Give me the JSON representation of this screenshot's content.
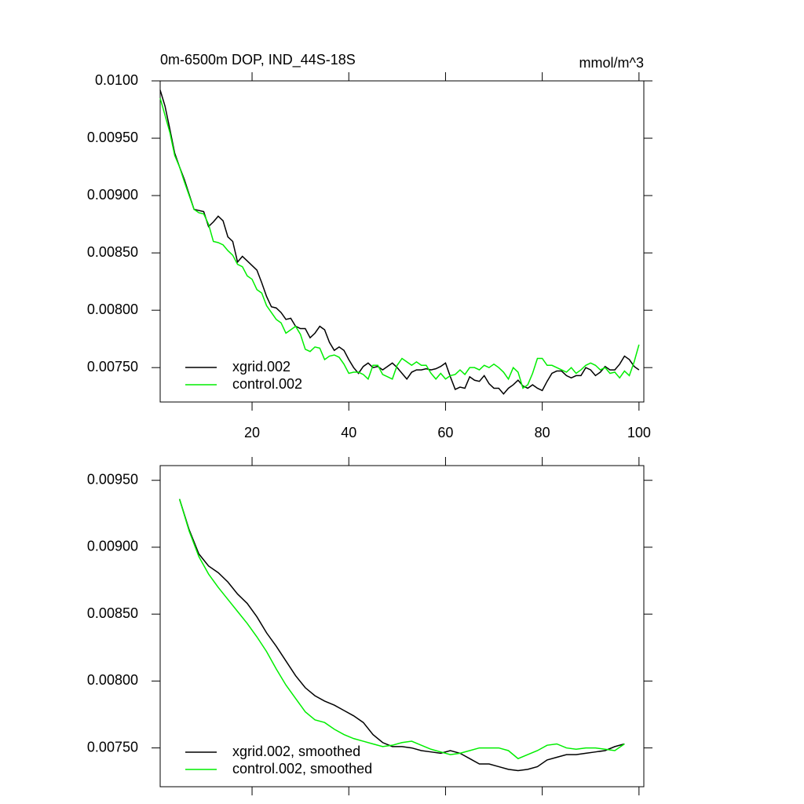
{
  "chart_data": [
    {
      "type": "line",
      "title": "0m-6500m DOP, IND_44S-18S",
      "subtitle": "mmol/m^3",
      "x": [
        1,
        2,
        3,
        4,
        5,
        6,
        7,
        8,
        9,
        10,
        11,
        12,
        13,
        14,
        15,
        16,
        17,
        18,
        19,
        20,
        21,
        22,
        23,
        24,
        25,
        26,
        27,
        28,
        29,
        30,
        31,
        32,
        33,
        34,
        35,
        36,
        37,
        38,
        39,
        40,
        41,
        42,
        43,
        44,
        45,
        46,
        47,
        48,
        49,
        50,
        51,
        52,
        53,
        54,
        55,
        56,
        57,
        58,
        59,
        60,
        61,
        62,
        63,
        64,
        65,
        66,
        67,
        68,
        69,
        70,
        71,
        72,
        73,
        74,
        75,
        76,
        77,
        78,
        79,
        80,
        81,
        82,
        83,
        84,
        85,
        86,
        87,
        88,
        89,
        90,
        91,
        92,
        93,
        94,
        95,
        96,
        97,
        98,
        99,
        100
      ],
      "series": [
        {
          "name": "xgrid.002",
          "color": "#000000",
          "values": [
            0.00992,
            0.00978,
            0.00958,
            0.00937,
            0.00925,
            0.00914,
            0.00901,
            0.00888,
            0.00887,
            0.00886,
            0.00873,
            0.00877,
            0.00882,
            0.00878,
            0.00864,
            0.0086,
            0.00842,
            0.00847,
            0.00843,
            0.00839,
            0.00835,
            0.00824,
            0.00812,
            0.00803,
            0.00802,
            0.00798,
            0.00792,
            0.00793,
            0.00786,
            0.00784,
            0.00784,
            0.00776,
            0.0078,
            0.00786,
            0.00783,
            0.00772,
            0.00765,
            0.00768,
            0.00765,
            0.00757,
            0.0075,
            0.00745,
            0.00751,
            0.00754,
            0.0075,
            0.00751,
            0.00748,
            0.00751,
            0.00754,
            0.0075,
            0.00745,
            0.0074,
            0.00746,
            0.00748,
            0.00748,
            0.00749,
            0.00748,
            0.00749,
            0.00751,
            0.00754,
            0.00742,
            0.00731,
            0.00733,
            0.00732,
            0.00742,
            0.00739,
            0.00738,
            0.00743,
            0.00736,
            0.00732,
            0.00732,
            0.00727,
            0.00732,
            0.00735,
            0.00739,
            0.00734,
            0.00732,
            0.00735,
            0.00732,
            0.0073,
            0.00738,
            0.00745,
            0.00747,
            0.00747,
            0.00743,
            0.00741,
            0.00743,
            0.00743,
            0.0075,
            0.00748,
            0.00743,
            0.00746,
            0.00751,
            0.00748,
            0.00748,
            0.00753,
            0.0076,
            0.00757,
            0.00751,
            0.00748
          ]
        },
        {
          "name": "control.002",
          "color": "#00ee00",
          "values": [
            0.00985,
            0.0097,
            0.00955,
            0.00935,
            0.00925,
            0.00912,
            0.009,
            0.00888,
            0.00885,
            0.00884,
            0.00875,
            0.0086,
            0.00859,
            0.00857,
            0.00852,
            0.00848,
            0.0084,
            0.00838,
            0.0083,
            0.00827,
            0.00818,
            0.00815,
            0.00804,
            0.00798,
            0.00792,
            0.00789,
            0.0078,
            0.00783,
            0.00786,
            0.00779,
            0.00766,
            0.00764,
            0.00768,
            0.00767,
            0.00757,
            0.0076,
            0.00761,
            0.00759,
            0.00753,
            0.00745,
            0.00746,
            0.00746,
            0.00744,
            0.0074,
            0.00752,
            0.00752,
            0.00744,
            0.00742,
            0.0074,
            0.00752,
            0.00758,
            0.00755,
            0.00752,
            0.00755,
            0.00752,
            0.00752,
            0.00745,
            0.0074,
            0.00745,
            0.0074,
            0.00743,
            0.00744,
            0.00748,
            0.00744,
            0.0075,
            0.0075,
            0.00748,
            0.00752,
            0.0075,
            0.00753,
            0.0075,
            0.00746,
            0.0074,
            0.0075,
            0.00746,
            0.00732,
            0.00735,
            0.00745,
            0.00758,
            0.00758,
            0.00752,
            0.00752,
            0.0075,
            0.00748,
            0.00746,
            0.0075,
            0.00745,
            0.00748,
            0.00752,
            0.00754,
            0.00752,
            0.00748,
            0.0075,
            0.00745,
            0.00746,
            0.00741,
            0.00747,
            0.00743,
            0.00755,
            0.0077
          ]
        }
      ],
      "xlim": [
        1,
        101
      ],
      "xticks": [
        20,
        40,
        60,
        80,
        100
      ],
      "ylim": [
        0.0072,
        0.01
      ],
      "yticks": [
        {
          "value": 0.0075,
          "label": "0.00750"
        },
        {
          "value": 0.008,
          "label": "0.00800"
        },
        {
          "value": 0.0085,
          "label": "0.00850"
        },
        {
          "value": 0.009,
          "label": "0.00900"
        },
        {
          "value": 0.0095,
          "label": "0.00950"
        },
        {
          "value": 0.01,
          "label": "0.0100"
        }
      ],
      "legend": "lower left"
    },
    {
      "type": "line",
      "x": [
        5,
        7,
        9,
        11,
        13,
        15,
        17,
        19,
        21,
        23,
        25,
        27,
        29,
        31,
        33,
        35,
        37,
        39,
        41,
        43,
        45,
        47,
        49,
        51,
        53,
        55,
        57,
        59,
        61,
        63,
        65,
        67,
        69,
        71,
        73,
        75,
        77,
        79,
        81,
        83,
        85,
        87,
        89,
        91,
        93,
        95,
        97
      ],
      "series": [
        {
          "name": "xgrid.002, smoothed",
          "color": "#000000",
          "values": [
            0.00936,
            0.00913,
            0.00895,
            0.00886,
            0.00881,
            0.00874,
            0.00865,
            0.00858,
            0.00848,
            0.00836,
            0.00826,
            0.00815,
            0.00804,
            0.00795,
            0.00789,
            0.00785,
            0.00782,
            0.00778,
            0.00774,
            0.00769,
            0.0076,
            0.00754,
            0.00751,
            0.00751,
            0.0075,
            0.00748,
            0.00747,
            0.00746,
            0.00748,
            0.00746,
            0.00742,
            0.00738,
            0.00738,
            0.00736,
            0.00734,
            0.00733,
            0.00734,
            0.00736,
            0.00741,
            0.00743,
            0.00745,
            0.00745,
            0.00746,
            0.00747,
            0.00748,
            0.00751,
            0.00753
          ]
        },
        {
          "name": "control.002, smoothed",
          "color": "#00ee00",
          "values": [
            0.00936,
            0.00912,
            0.00893,
            0.0088,
            0.0087,
            0.00861,
            0.00852,
            0.00843,
            0.00833,
            0.00822,
            0.00809,
            0.00797,
            0.00787,
            0.00777,
            0.00771,
            0.00769,
            0.00764,
            0.0076,
            0.00757,
            0.00755,
            0.00753,
            0.00751,
            0.00752,
            0.00754,
            0.00755,
            0.00752,
            0.00749,
            0.00747,
            0.00745,
            0.00746,
            0.00748,
            0.0075,
            0.0075,
            0.0075,
            0.00748,
            0.00742,
            0.00745,
            0.00748,
            0.00752,
            0.00753,
            0.0075,
            0.00749,
            0.0075,
            0.0075,
            0.00749,
            0.00748,
            0.00753
          ]
        }
      ],
      "xlim": [
        1,
        101
      ],
      "ylim": [
        0.00721,
        0.00961
      ],
      "yticks": [
        {
          "value": 0.0075,
          "label": "0.00750"
        },
        {
          "value": 0.008,
          "label": "0.00800"
        },
        {
          "value": 0.0085,
          "label": "0.00850"
        },
        {
          "value": 0.009,
          "label": "0.00900"
        },
        {
          "value": 0.0095,
          "label": "0.00950"
        }
      ],
      "legend": "lower left"
    }
  ]
}
